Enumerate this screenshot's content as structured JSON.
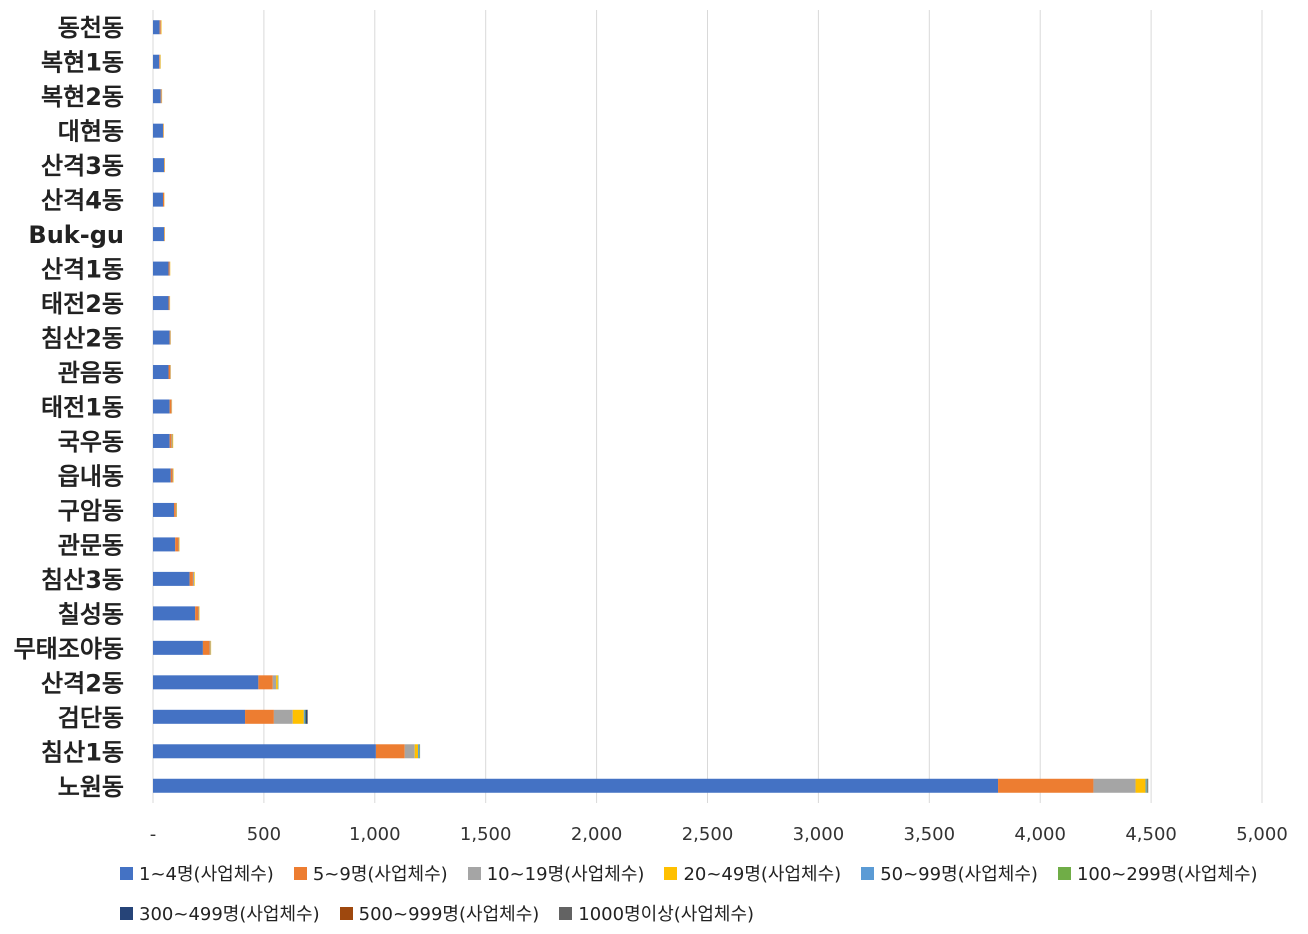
{
  "chart_data": {
    "type": "bar",
    "orientation": "horizontal",
    "stacked": true,
    "categories": [
      "동천동",
      "복현1동",
      "복현2동",
      "대현동",
      "산격3동",
      "산격4동",
      "Buk-gu",
      "산격1동",
      "태전2동",
      "침산2동",
      "관음동",
      "태전1동",
      "국우동",
      "읍내동",
      "구암동",
      "관문동",
      "침산3동",
      "칠성동",
      "무태조야동",
      "산격2동",
      "검단동",
      "침산1동",
      "노원동"
    ],
    "x_ticks": [
      "-",
      "500",
      "1,000",
      "1,500",
      "2,000",
      "2,500",
      "3,000",
      "3,500",
      "4,000",
      "4,500",
      "5,000"
    ],
    "xlim": [
      0,
      5000
    ],
    "grid": true,
    "legend_position": "bottom",
    "series": [
      {
        "name": "1~4명(사업체수)",
        "color": "#4472C4",
        "values": [
          30,
          28,
          35,
          45,
          50,
          45,
          50,
          70,
          70,
          75,
          70,
          75,
          75,
          80,
          95,
          100,
          165,
          190,
          225,
          475,
          415,
          1005,
          3810
        ]
      },
      {
        "name": "5~9명(사업체수)",
        "color": "#ED7D31",
        "values": [
          5,
          3,
          3,
          2,
          2,
          5,
          2,
          5,
          4,
          3,
          8,
          8,
          8,
          8,
          8,
          15,
          15,
          15,
          30,
          65,
          130,
          130,
          430
        ]
      },
      {
        "name": "10~19명(사업체수)",
        "color": "#A5A5A5",
        "values": [
          2,
          2,
          2,
          1,
          1,
          1,
          1,
          2,
          2,
          2,
          2,
          2,
          5,
          3,
          3,
          3,
          5,
          3,
          5,
          15,
          85,
          45,
          190
        ]
      },
      {
        "name": "20~49명(사업체수)",
        "color": "#FFC000",
        "values": [
          2,
          2,
          1,
          1,
          1,
          1,
          1,
          1,
          1,
          1,
          1,
          1,
          3,
          2,
          2,
          2,
          3,
          2,
          2,
          8,
          50,
          15,
          45
        ]
      },
      {
        "name": "50~99명(사업체수)",
        "color": "#5B9BD5",
        "values": [
          0,
          0,
          0,
          0,
          0,
          0,
          0,
          0,
          0,
          0,
          0,
          0,
          0,
          0,
          0,
          0,
          0,
          0,
          0,
          2,
          5,
          5,
          5
        ]
      },
      {
        "name": "100~299명(사업체수)",
        "color": "#70AD47",
        "values": [
          0,
          0,
          0,
          0,
          0,
          0,
          0,
          0,
          0,
          0,
          0,
          0,
          0,
          0,
          0,
          0,
          0,
          0,
          0,
          1,
          3,
          3,
          3
        ]
      },
      {
        "name": "300~499명(사업체수)",
        "color": "#264478",
        "values": [
          0,
          0,
          0,
          0,
          0,
          0,
          0,
          0,
          0,
          0,
          0,
          0,
          0,
          0,
          0,
          0,
          0,
          0,
          0,
          0,
          8,
          1,
          2
        ]
      },
      {
        "name": "500~999명(사업체수)",
        "color": "#9E480E",
        "values": [
          0,
          0,
          0,
          0,
          0,
          0,
          0,
          0,
          0,
          0,
          0,
          0,
          0,
          0,
          0,
          0,
          0,
          0,
          0,
          0,
          1,
          0,
          1
        ]
      },
      {
        "name": "1000명이상(사업체수)",
        "color": "#636363",
        "values": [
          0,
          0,
          0,
          0,
          0,
          0,
          0,
          0,
          0,
          0,
          0,
          0,
          0,
          0,
          0,
          0,
          0,
          0,
          0,
          0,
          1,
          0,
          1
        ]
      }
    ]
  }
}
